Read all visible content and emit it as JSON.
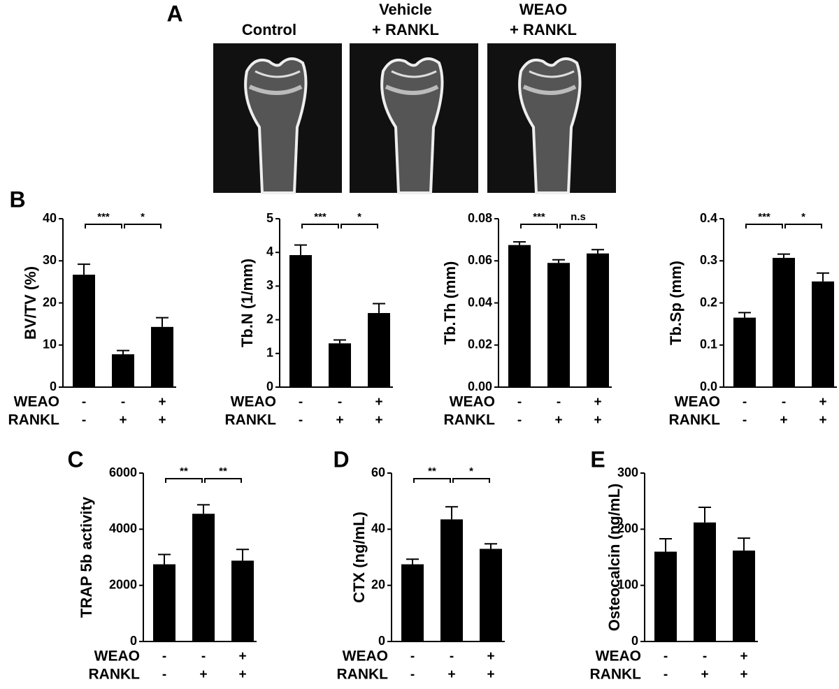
{
  "panel_labels": [
    "A",
    "B",
    "C",
    "D",
    "E"
  ],
  "images": [
    {
      "lines": [
        "Control"
      ]
    },
    {
      "lines": [
        "Vehicle",
        "+ RANKL"
      ]
    },
    {
      "lines": [
        "WEAO",
        "+ RANKL"
      ]
    }
  ],
  "chart_data": [
    {
      "type": "bar",
      "ylabel": "BV/TV (%)",
      "color": "#000000",
      "values": [
        26.7,
        7.8,
        14.3
      ],
      "errors": [
        2.5,
        0.9,
        2.2
      ],
      "ylim": [
        0,
        40
      ],
      "yticks": [
        0,
        10,
        20,
        30,
        40
      ],
      "treatments": [
        {
          "name": "WEAO",
          "signs": [
            "-",
            "-",
            "+"
          ]
        },
        {
          "name": "RANKL",
          "signs": [
            "-",
            "+",
            "+"
          ]
        }
      ],
      "significance": [
        {
          "from": 0,
          "to": 1,
          "label": "***"
        },
        {
          "from": 1,
          "to": 2,
          "label": "*"
        }
      ]
    },
    {
      "type": "bar",
      "ylabel": "Tb.N (1/mm)",
      "color": "#000000",
      "values": [
        3.92,
        1.3,
        2.2
      ],
      "errors": [
        0.3,
        0.1,
        0.28
      ],
      "ylim": [
        0,
        5
      ],
      "yticks": [
        0,
        1,
        2,
        3,
        4,
        5
      ],
      "treatments": [
        {
          "name": "WEAO",
          "signs": [
            "-",
            "-",
            "+"
          ]
        },
        {
          "name": "RANKL",
          "signs": [
            "-",
            "+",
            "+"
          ]
        }
      ],
      "significance": [
        {
          "from": 0,
          "to": 1,
          "label": "***"
        },
        {
          "from": 1,
          "to": 2,
          "label": "*"
        }
      ]
    },
    {
      "type": "bar",
      "ylabel": "Tb.Th (mm)",
      "color": "#000000",
      "values": [
        0.0675,
        0.059,
        0.0635
      ],
      "errors": [
        0.0015,
        0.0015,
        0.0018
      ],
      "ylim": [
        0,
        0.08
      ],
      "yticks": [
        {
          "value": 0,
          "label": "0.00"
        },
        {
          "value": 0.02,
          "label": "0.02"
        },
        {
          "value": 0.04,
          "label": "0.04"
        },
        {
          "value": 0.06,
          "label": "0.06"
        },
        {
          "value": 0.08,
          "label": "0.08"
        }
      ],
      "treatments": [
        {
          "name": "WEAO",
          "signs": [
            "-",
            "-",
            "+"
          ]
        },
        {
          "name": "RANKL",
          "signs": [
            "-",
            "+",
            "+"
          ]
        }
      ],
      "significance": [
        {
          "from": 0,
          "to": 1,
          "label": "***"
        },
        {
          "from": 1,
          "to": 2,
          "label": "n.s"
        }
      ]
    },
    {
      "type": "bar",
      "ylabel": "Tb.Sp (mm)",
      "color": "#000000",
      "values": [
        0.165,
        0.307,
        0.251
      ],
      "errors": [
        0.012,
        0.009,
        0.02
      ],
      "ylim": [
        0,
        0.4
      ],
      "yticks": [
        {
          "value": 0,
          "label": "0.0"
        },
        0.1,
        0.2,
        0.3,
        0.4
      ],
      "treatments": [
        {
          "name": "WEAO",
          "signs": [
            "-",
            "-",
            "+"
          ]
        },
        {
          "name": "RANKL",
          "signs": [
            "-",
            "+",
            "+"
          ]
        }
      ],
      "significance": [
        {
          "from": 0,
          "to": 1,
          "label": "***"
        },
        {
          "from": 1,
          "to": 2,
          "label": "*"
        }
      ]
    },
    {
      "type": "bar",
      "ylabel": "TRAP 5b activity",
      "color": "#000000",
      "values": [
        2750,
        4550,
        2880
      ],
      "errors": [
        350,
        320,
        400
      ],
      "ylim": [
        0,
        6000
      ],
      "yticks": [
        0,
        2000,
        4000,
        6000
      ],
      "treatments": [
        {
          "name": "WEAO",
          "signs": [
            "-",
            "-",
            "+"
          ]
        },
        {
          "name": "RANKL",
          "signs": [
            "-",
            "+",
            "+"
          ]
        }
      ],
      "significance": [
        {
          "from": 0,
          "to": 1,
          "label": "**"
        },
        {
          "from": 1,
          "to": 2,
          "label": "**"
        }
      ]
    },
    {
      "type": "bar",
      "ylabel": "CTX (ng/mL)",
      "color": "#000000",
      "values": [
        27.5,
        43.5,
        33
      ],
      "errors": [
        1.8,
        4.5,
        1.8
      ],
      "ylim": [
        0,
        60
      ],
      "yticks": [
        0,
        20,
        40,
        60
      ],
      "treatments": [
        {
          "name": "WEAO",
          "signs": [
            "-",
            "-",
            "+"
          ]
        },
        {
          "name": "RANKL",
          "signs": [
            "-",
            "+",
            "+"
          ]
        }
      ],
      "significance": [
        {
          "from": 0,
          "to": 1,
          "label": "**"
        },
        {
          "from": 1,
          "to": 2,
          "label": "*"
        }
      ]
    },
    {
      "type": "bar",
      "ylabel": "Osteocalcin (ng/mL)",
      "color": "#000000",
      "values": [
        160,
        212,
        162
      ],
      "errors": [
        23,
        27,
        22
      ],
      "ylim": [
        0,
        300
      ],
      "yticks": [
        0,
        100,
        200,
        300
      ],
      "treatments": [
        {
          "name": "WEAO",
          "signs": [
            "-",
            "-",
            "+"
          ]
        },
        {
          "name": "RANKL",
          "signs": [
            "-",
            "+",
            "+"
          ]
        }
      ],
      "significance": []
    }
  ]
}
